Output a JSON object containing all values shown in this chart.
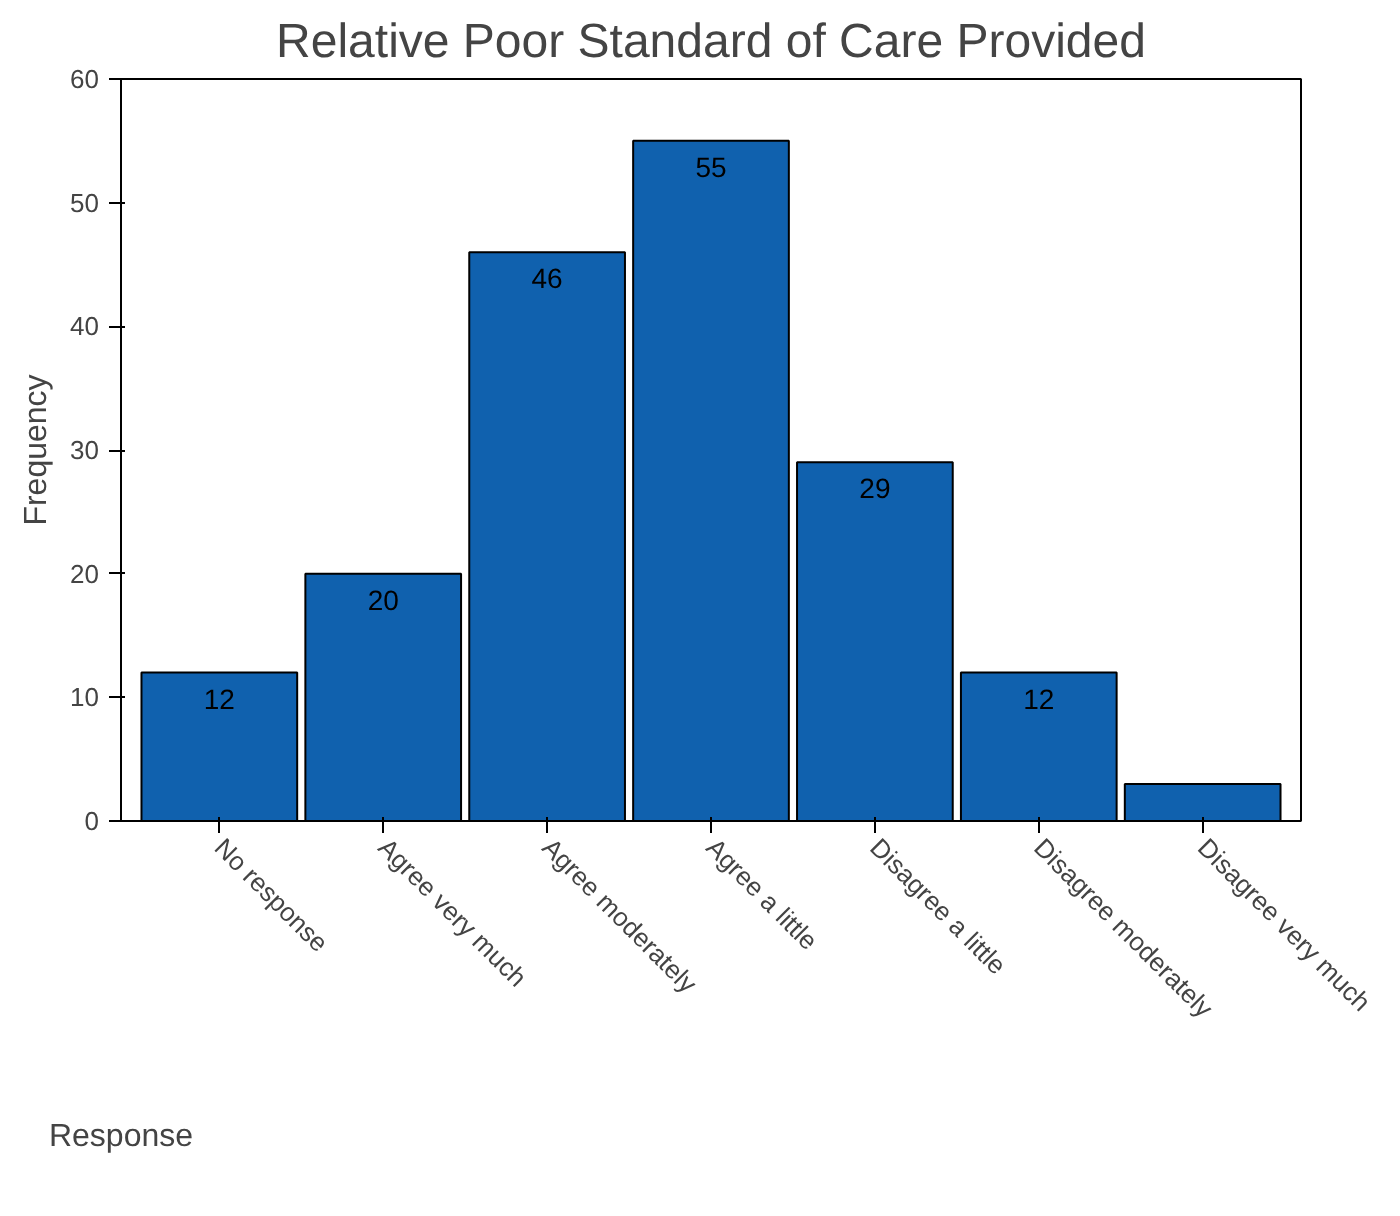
{
  "chart_data": {
    "type": "bar",
    "title": "Relative Poor Standard of Care Provided",
    "categories": [
      "No response",
      "Agree very much",
      "Agree moderately",
      "Agree a little",
      "Disagree a little",
      "Disagree moderately",
      "Disagree very much"
    ],
    "values": [
      12,
      20,
      46,
      55,
      29,
      12,
      3
    ],
    "value_labels": [
      "12",
      "20",
      "46",
      "55",
      "29",
      "12",
      null
    ],
    "color": "#1061ae",
    "xlabel": "Response",
    "ylabel": "Frequency",
    "ylim": [
      0,
      60
    ],
    "yticks": [
      0,
      10,
      20,
      30,
      40,
      50,
      60
    ],
    "grid": false
  }
}
